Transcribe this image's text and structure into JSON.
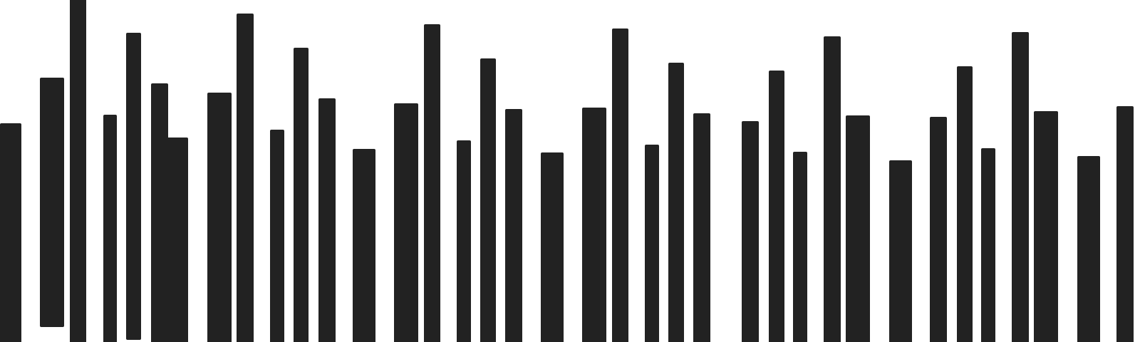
{
  "pattern": {
    "bar_color": "#222222",
    "background": "#ffffff",
    "bar_count": 37
  }
}
